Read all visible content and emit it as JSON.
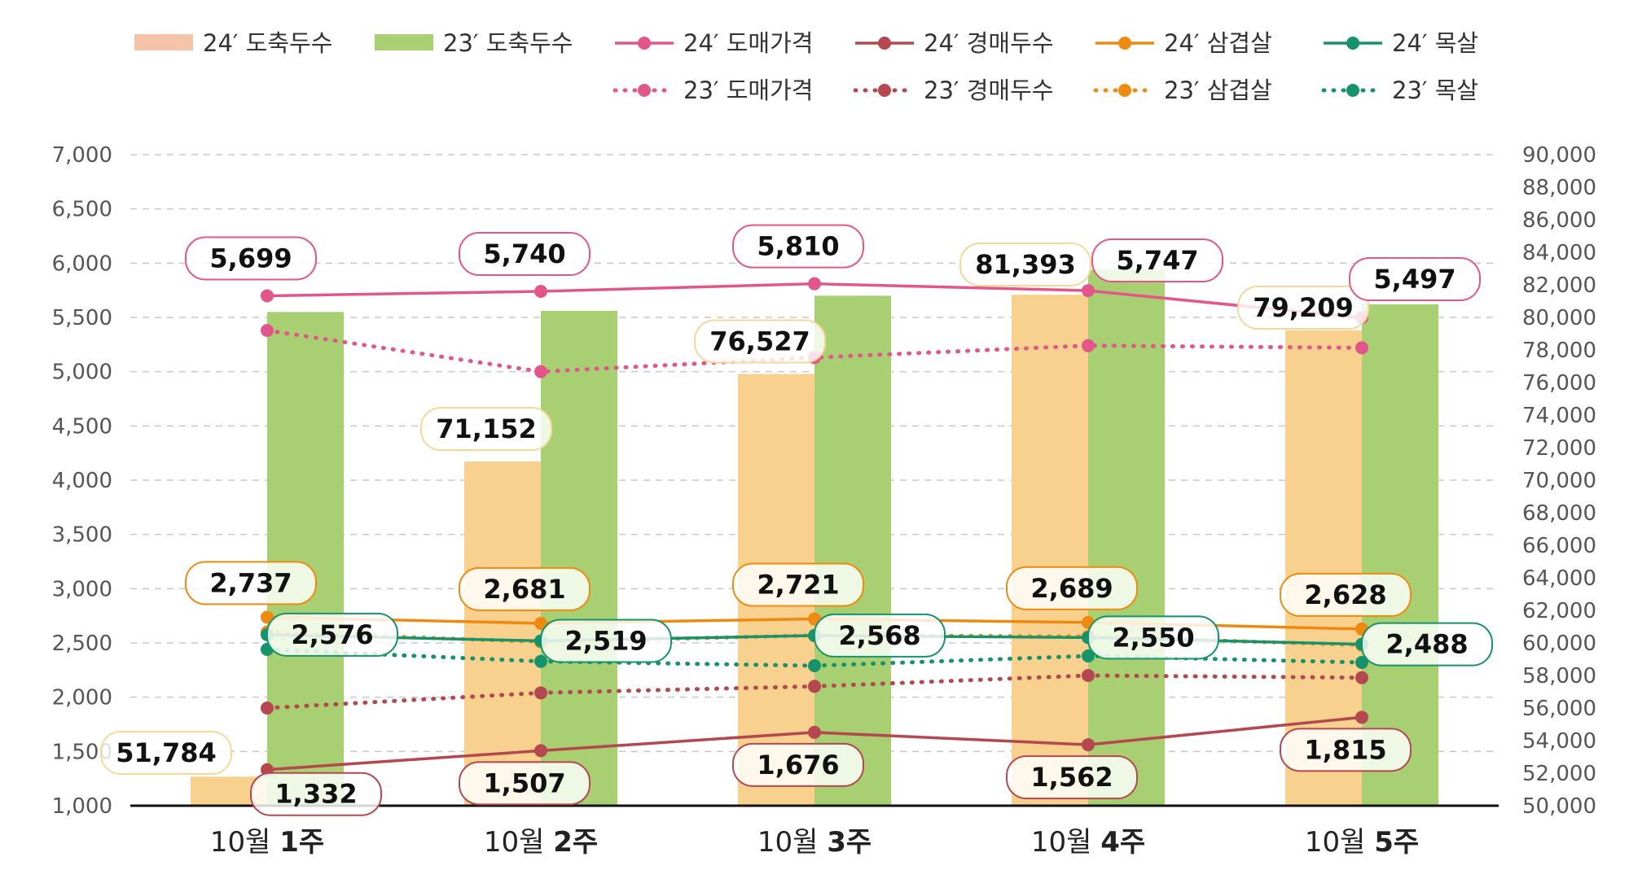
{
  "chart_data": {
    "type": "bar",
    "categories": [
      {
        "prefix": "10월 ",
        "bold": "1주"
      },
      {
        "prefix": "10월 ",
        "bold": "2주"
      },
      {
        "prefix": "10월 ",
        "bold": "3주"
      },
      {
        "prefix": "10월 ",
        "bold": "4주"
      },
      {
        "prefix": "10월 ",
        "bold": "5주"
      }
    ],
    "y_left": {
      "min": 1000,
      "max": 7000,
      "step": 500,
      "ticks": [
        "1,000",
        "1,500",
        "2,000",
        "2,500",
        "3,000",
        "3,500",
        "4,000",
        "4,500",
        "5,000",
        "5,500",
        "6,000",
        "6,500",
        "7,000"
      ]
    },
    "y_right": {
      "min": 50000,
      "max": 90000,
      "step": 2000,
      "ticks": [
        "50,000",
        "52,000",
        "54,000",
        "56,000",
        "58,000",
        "60,000",
        "62,000",
        "64,000",
        "66,000",
        "68,000",
        "70,000",
        "72,000",
        "74,000",
        "76,000",
        "78,000",
        "80,000",
        "82,000",
        "84,000",
        "86,000",
        "88,000",
        "90,000"
      ]
    },
    "grid": true,
    "legend_position": "top",
    "series": [
      {
        "name": "24′ 도축두수",
        "kind": "bar",
        "axis": "right",
        "color": "#f9d18f",
        "legend_color": "#f5c4a8",
        "values": [
          51784,
          71152,
          76527,
          81393,
          79209
        ],
        "labels": [
          "51,784",
          "71,152",
          "76,527",
          "81,393",
          "79,209"
        ],
        "label_border": "#f5d79a"
      },
      {
        "name": "23′ 도축두수",
        "kind": "bar",
        "axis": "left",
        "color": "#a8d072",
        "legend_color": "#a8d072",
        "values": [
          5550,
          5560,
          5700,
          5940,
          5620
        ]
      },
      {
        "name": "24′ 도매가격",
        "kind": "line",
        "dash": false,
        "axis": "left",
        "color": "#e2568b",
        "values": [
          5699,
          5740,
          5810,
          5747,
          5497
        ],
        "labels": [
          "5,699",
          "5,740",
          "5,810",
          "5,747",
          "5,497"
        ],
        "label_border": "#e2568b"
      },
      {
        "name": "24′ 경매두수",
        "kind": "line",
        "dash": false,
        "axis": "left",
        "color": "#b5474f",
        "values": [
          1332,
          1507,
          1676,
          1562,
          1815
        ],
        "labels": [
          "1,332",
          "1,507",
          "1,676",
          "1,562",
          "1,815"
        ],
        "label_border": "#b5474f"
      },
      {
        "name": "24′ 삼겹살",
        "kind": "line",
        "dash": false,
        "axis": "left",
        "color": "#ef8a10",
        "values": [
          2737,
          2681,
          2721,
          2689,
          2628
        ],
        "labels": [
          "2,737",
          "2,681",
          "2,721",
          "2,689",
          "2,628"
        ],
        "label_border": "#ef8a10"
      },
      {
        "name": "24′ 목살",
        "kind": "line",
        "dash": false,
        "axis": "left",
        "color": "#16936b",
        "values": [
          2576,
          2519,
          2568,
          2550,
          2488
        ],
        "labels": [
          "2,576",
          "2,519",
          "2,568",
          "2,550",
          "2,488"
        ],
        "label_border": "#16936b"
      },
      {
        "name": "23′ 도매가격",
        "kind": "line",
        "dash": true,
        "axis": "left",
        "color": "#e2568b",
        "values": [
          5380,
          5000,
          5130,
          5240,
          5220
        ]
      },
      {
        "name": "23′ 경매두수",
        "kind": "line",
        "dash": true,
        "axis": "left",
        "color": "#b5474f",
        "values": [
          1900,
          2040,
          2100,
          2200,
          2180
        ]
      },
      {
        "name": "23′ 삼겹살",
        "kind": "line",
        "dash": true,
        "axis": "left",
        "color": "#ef8a10",
        "values": [
          2600,
          2510,
          2570,
          2560,
          2480
        ]
      },
      {
        "name": "23′ 목살",
        "kind": "line",
        "dash": true,
        "axis": "left",
        "color": "#16936b",
        "values": [
          2440,
          2330,
          2290,
          2380,
          2320
        ]
      }
    ]
  }
}
